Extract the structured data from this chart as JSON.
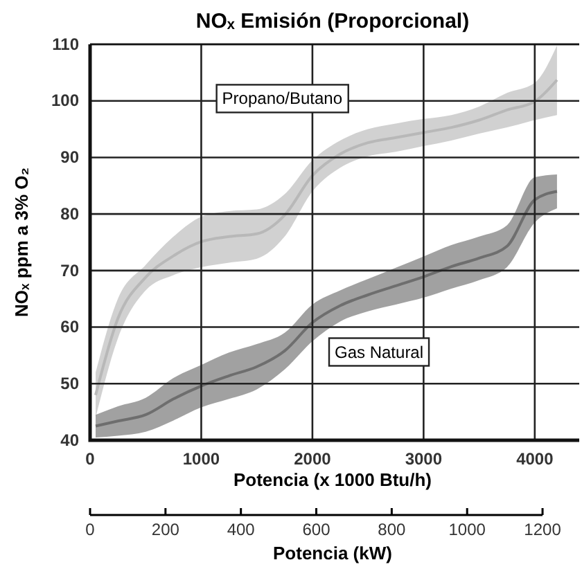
{
  "chart_data": {
    "type": "line",
    "title": "NOₓ Emisión (Proporcional)",
    "xlabel": "Potencia (x 1000 Btu/h)",
    "ylabel": "NOₓ ppm a 3% O₂",
    "x2label": "Potencia (kW)",
    "x": [
      50,
      250,
      500,
      750,
      1000,
      1250,
      1500,
      1750,
      2000,
      2250,
      2500,
      2750,
      3000,
      3250,
      3500,
      3750,
      4000,
      4200
    ],
    "series": [
      {
        "name": "Propano/Butano",
        "color": "#b8b8b8",
        "values": [
          48,
          61.5,
          68.8,
          72.6,
          75.1,
          76,
          76.5,
          79.8,
          86.8,
          90.6,
          92.6,
          93.5,
          94.4,
          95.3,
          96.6,
          98.4,
          99.9,
          103.7
        ],
        "lower": [
          44,
          58,
          66.5,
          69.2,
          70.6,
          71.4,
          72.1,
          76,
          84,
          88.2,
          90.2,
          91,
          92,
          93,
          94.2,
          95.3,
          96.6,
          97.5
        ],
        "upper": [
          52,
          65,
          71,
          76,
          79.5,
          80.5,
          80.8,
          83.5,
          89.5,
          93,
          95,
          96,
          96.8,
          97.5,
          99,
          101.4,
          103.2,
          109.8
        ]
      },
      {
        "name": "Gas Natural",
        "color": "#6e6e6e",
        "values": [
          42.5,
          43.4,
          44.5,
          47.3,
          49.6,
          51.4,
          53,
          55.8,
          60.8,
          63.8,
          65.7,
          67.3,
          68.9,
          70.7,
          72.2,
          74.3,
          82.5,
          84
        ],
        "lower": [
          40.5,
          40.8,
          41.5,
          43.5,
          45.8,
          47.3,
          49,
          52.5,
          57.5,
          61,
          62.8,
          64,
          65.2,
          66.8,
          68.3,
          70.6,
          78.5,
          81
        ],
        "upper": [
          44.5,
          46,
          47.5,
          51,
          53.3,
          55.5,
          57,
          59,
          64,
          66.5,
          68.5,
          70.5,
          72.5,
          74.5,
          76,
          78,
          86.5,
          87
        ]
      }
    ],
    "xlim": [
      0,
      4400
    ],
    "xticks": [
      0,
      1000,
      2000,
      3000,
      4000
    ],
    "ylim": [
      40,
      110
    ],
    "yticks": [
      40,
      50,
      60,
      70,
      80,
      90,
      100,
      110
    ],
    "x2lim": [
      0,
      1200
    ],
    "x2ticks": [
      0,
      200,
      400,
      600,
      800,
      1000,
      1200
    ],
    "grid": true
  }
}
